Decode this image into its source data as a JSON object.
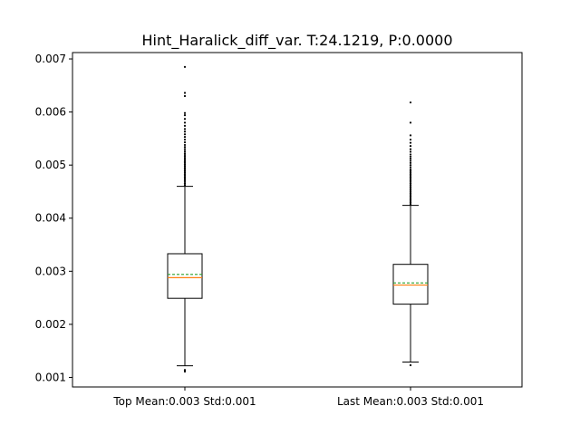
{
  "chart_data": {
    "type": "box",
    "title": "Hint_Haralick_diff_var. T:24.1219, P:0.0000",
    "xlabel": "",
    "ylabel": "",
    "categories": [
      "Top Mean:0.003 Std:0.001",
      "Last Mean:0.003 Std:0.001"
    ],
    "ylim": [
      0.00082,
      0.00712
    ],
    "yticks": [
      0.001,
      0.002,
      0.003,
      0.004,
      0.005,
      0.006,
      0.007
    ],
    "ytick_labels": [
      "0.001",
      "0.002",
      "0.003",
      "0.004",
      "0.005",
      "0.006",
      "0.007"
    ],
    "grid": false,
    "boxes": [
      {
        "q1": 0.00249,
        "median": 0.00288,
        "mean": 0.00294,
        "q3": 0.00333,
        "whisker_low": 0.00122,
        "whisker_high": 0.0046,
        "outliers": [
          0.00111,
          0.00114,
          0.00462,
          0.00465,
          0.00468,
          0.00471,
          0.00474,
          0.00477,
          0.0048,
          0.00483,
          0.00486,
          0.00489,
          0.00492,
          0.00495,
          0.00498,
          0.00501,
          0.00504,
          0.00507,
          0.0051,
          0.00513,
          0.00516,
          0.00519,
          0.00522,
          0.00526,
          0.0053,
          0.00534,
          0.00538,
          0.00543,
          0.00548,
          0.00553,
          0.00558,
          0.00563,
          0.00568,
          0.00574,
          0.0058,
          0.00587,
          0.00594,
          0.00598,
          0.0063,
          0.00636,
          0.00685
        ]
      },
      {
        "q1": 0.00238,
        "median": 0.00274,
        "mean": 0.00278,
        "q3": 0.00313,
        "whisker_low": 0.00129,
        "whisker_high": 0.00424,
        "outliers": [
          0.00123,
          0.00426,
          0.00429,
          0.00432,
          0.00435,
          0.00438,
          0.00441,
          0.00444,
          0.00447,
          0.0045,
          0.00453,
          0.00456,
          0.00459,
          0.00462,
          0.00465,
          0.00468,
          0.00471,
          0.00474,
          0.00477,
          0.0048,
          0.00483,
          0.00486,
          0.00489,
          0.00492,
          0.00496,
          0.005,
          0.00504,
          0.00508,
          0.00512,
          0.00516,
          0.0052,
          0.00525,
          0.0053,
          0.00536,
          0.00542,
          0.00548,
          0.00556,
          0.0058,
          0.00618
        ]
      }
    ],
    "colors": {
      "box": "#000000",
      "median": "#ff7f0e",
      "mean": "#2ca02c",
      "outlier": "#000000"
    }
  }
}
